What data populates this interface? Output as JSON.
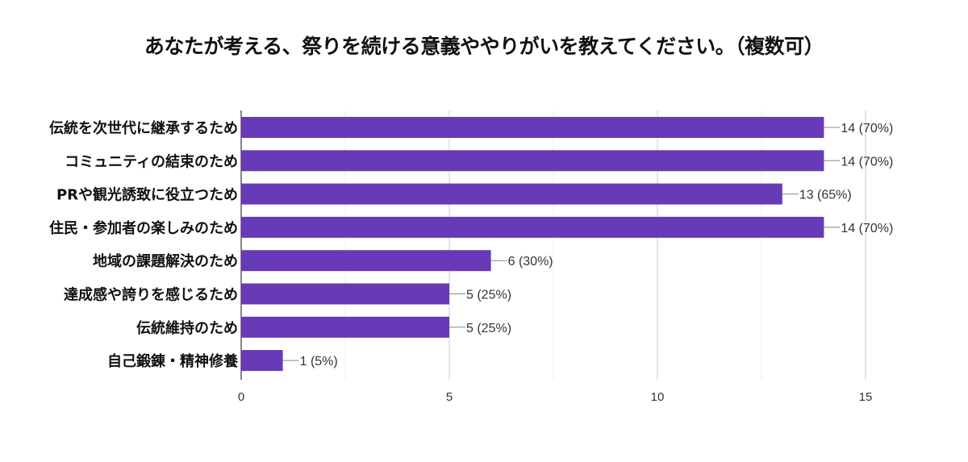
{
  "chart_data": {
    "type": "bar",
    "orientation": "horizontal",
    "title": "あなたが考える、祭りを続ける意義ややりがいを教えてください。（複数可）",
    "categories": [
      "伝統を次世代に継承するため",
      "コミュニティの結束のため",
      "PRや観光誘致に役立つため",
      "住民・参加者の楽しみのため",
      "地域の課題解決のため",
      "達成感や誇りを感じるため",
      "伝統維持のため",
      "自己鍛錬・精神修養"
    ],
    "values": [
      14,
      14,
      13,
      14,
      6,
      5,
      5,
      1
    ],
    "value_labels": [
      "14 (70%)",
      "14 (70%)",
      "13 (65%)",
      "14 (70%)",
      "6 (30%)",
      "5 (25%)",
      "5 (25%)",
      "1 (5%)"
    ],
    "xlim": [
      0,
      15
    ],
    "x_ticks": [
      0,
      5,
      10,
      15
    ],
    "x_tick_labels": [
      "0",
      "5",
      "10",
      "15"
    ],
    "bar_color": "#673ab7",
    "grid": true,
    "legend": "none"
  }
}
